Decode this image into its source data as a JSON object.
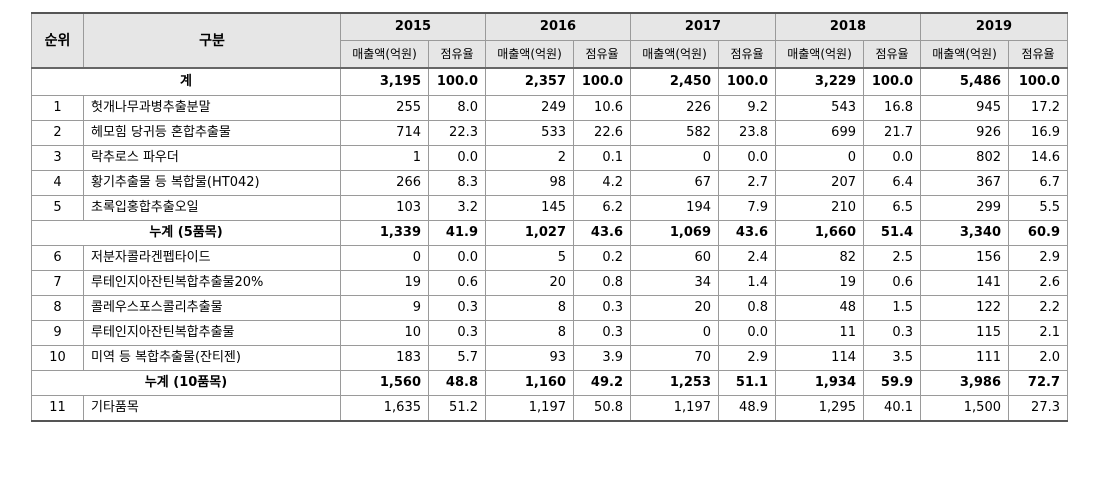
{
  "headers": {
    "rank": "순위",
    "category": "구분",
    "years": [
      "2015",
      "2016",
      "2017",
      "2018",
      "2019"
    ],
    "sales": "매출액(억원)",
    "share": "점유율"
  },
  "total": {
    "label": "계",
    "values": [
      [
        "3,195",
        "100.0"
      ],
      [
        "2,357",
        "100.0"
      ],
      [
        "2,450",
        "100.0"
      ],
      [
        "3,229",
        "100.0"
      ],
      [
        "5,486",
        "100.0"
      ]
    ]
  },
  "group1": [
    {
      "rank": "1",
      "name": "헛개나무과병추출분말",
      "values": [
        [
          "255",
          "8.0"
        ],
        [
          "249",
          "10.6"
        ],
        [
          "226",
          "9.2"
        ],
        [
          "543",
          "16.8"
        ],
        [
          "945",
          "17.2"
        ]
      ]
    },
    {
      "rank": "2",
      "name": "헤모힘 당귀등 혼합추출물",
      "values": [
        [
          "714",
          "22.3"
        ],
        [
          "533",
          "22.6"
        ],
        [
          "582",
          "23.8"
        ],
        [
          "699",
          "21.7"
        ],
        [
          "926",
          "16.9"
        ]
      ]
    },
    {
      "rank": "3",
      "name": "락추로스 파우더",
      "values": [
        [
          "1",
          "0.0"
        ],
        [
          "2",
          "0.1"
        ],
        [
          "0",
          "0.0"
        ],
        [
          "0",
          "0.0"
        ],
        [
          "802",
          "14.6"
        ]
      ]
    },
    {
      "rank": "4",
      "name": "황기추출물 등 복합물(HT042)",
      "values": [
        [
          "266",
          "8.3"
        ],
        [
          "98",
          "4.2"
        ],
        [
          "67",
          "2.7"
        ],
        [
          "207",
          "6.4"
        ],
        [
          "367",
          "6.7"
        ]
      ]
    },
    {
      "rank": "5",
      "name": "초록입홍합추출오일",
      "values": [
        [
          "103",
          "3.2"
        ],
        [
          "145",
          "6.2"
        ],
        [
          "194",
          "7.9"
        ],
        [
          "210",
          "6.5"
        ],
        [
          "299",
          "5.5"
        ]
      ]
    }
  ],
  "subtotal5": {
    "label": "누계 (5품목)",
    "values": [
      [
        "1,339",
        "41.9"
      ],
      [
        "1,027",
        "43.6"
      ],
      [
        "1,069",
        "43.6"
      ],
      [
        "1,660",
        "51.4"
      ],
      [
        "3,340",
        "60.9"
      ]
    ]
  },
  "group2": [
    {
      "rank": "6",
      "name": "저분자콜라겐펩타이드",
      "values": [
        [
          "0",
          "0.0"
        ],
        [
          "5",
          "0.2"
        ],
        [
          "60",
          "2.4"
        ],
        [
          "82",
          "2.5"
        ],
        [
          "156",
          "2.9"
        ]
      ]
    },
    {
      "rank": "7",
      "name": "루테인지아잔틴복합추출물20%",
      "values": [
        [
          "19",
          "0.6"
        ],
        [
          "20",
          "0.8"
        ],
        [
          "34",
          "1.4"
        ],
        [
          "19",
          "0.6"
        ],
        [
          "141",
          "2.6"
        ]
      ]
    },
    {
      "rank": "8",
      "name": "콜레우스포스콜리추출물",
      "values": [
        [
          "9",
          "0.3"
        ],
        [
          "8",
          "0.3"
        ],
        [
          "20",
          "0.8"
        ],
        [
          "48",
          "1.5"
        ],
        [
          "122",
          "2.2"
        ]
      ]
    },
    {
      "rank": "9",
      "name": "루테인지아잔틴복합추출물",
      "values": [
        [
          "10",
          "0.3"
        ],
        [
          "8",
          "0.3"
        ],
        [
          "0",
          "0.0"
        ],
        [
          "11",
          "0.3"
        ],
        [
          "115",
          "2.1"
        ]
      ]
    },
    {
      "rank": "10",
      "name": "미역 등 복합추출물(잔티젠)",
      "values": [
        [
          "183",
          "5.7"
        ],
        [
          "93",
          "3.9"
        ],
        [
          "70",
          "2.9"
        ],
        [
          "114",
          "3.5"
        ],
        [
          "111",
          "2.0"
        ]
      ]
    }
  ],
  "subtotal10": {
    "label": "누계 (10품목)",
    "values": [
      [
        "1,560",
        "48.8"
      ],
      [
        "1,160",
        "49.2"
      ],
      [
        "1,253",
        "51.1"
      ],
      [
        "1,934",
        "59.9"
      ],
      [
        "3,986",
        "72.7"
      ]
    ]
  },
  "group3": [
    {
      "rank": "11",
      "name": "기타품목",
      "values": [
        [
          "1,635",
          "51.2"
        ],
        [
          "1,197",
          "50.8"
        ],
        [
          "1,197",
          "48.9"
        ],
        [
          "1,295",
          "40.1"
        ],
        [
          "1,500",
          "27.3"
        ]
      ]
    }
  ]
}
